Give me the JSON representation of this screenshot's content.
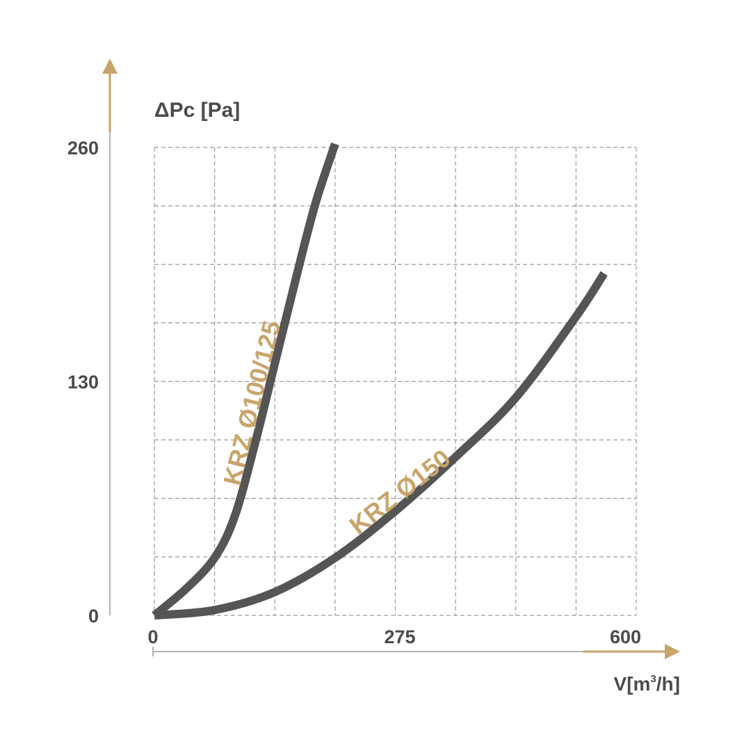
{
  "chart_data": {
    "type": "line",
    "title": "",
    "ylabel": "ΔPc [Pa]",
    "xlabel_parts": {
      "base": "V[m",
      "sup": "3",
      "tail": "/h]"
    },
    "xlim": [
      0,
      600
    ],
    "ylim": [
      0,
      260
    ],
    "x_ticks": [
      {
        "value": 0,
        "label": "0"
      },
      {
        "value": 275,
        "label": "275"
      },
      {
        "value": 600,
        "label": "600"
      }
    ],
    "y_ticks": [
      {
        "value": 0,
        "label": "0"
      },
      {
        "value": 130,
        "label": "130"
      },
      {
        "value": 260,
        "label": "260"
      }
    ],
    "grid": true,
    "legend": "none",
    "colors": {
      "line": "#555555",
      "accent": "#c9a46a",
      "grid": "#9a9a9a",
      "text": "#4b4b4b"
    },
    "series": [
      {
        "name": "KRZ Ø100/125",
        "x": [
          0,
          40,
          75,
          100,
          125,
          150,
          175,
          200,
          225
        ],
        "y": [
          0,
          15,
          32,
          55,
          95,
          140,
          185,
          228,
          262
        ]
      },
      {
        "name": "KRZ Ø150",
        "x": [
          0,
          75,
          150,
          225,
          300,
          375,
          450,
          525,
          560
        ],
        "y": [
          0,
          3,
          13,
          32,
          58,
          88,
          121,
          166,
          190
        ]
      }
    ]
  }
}
